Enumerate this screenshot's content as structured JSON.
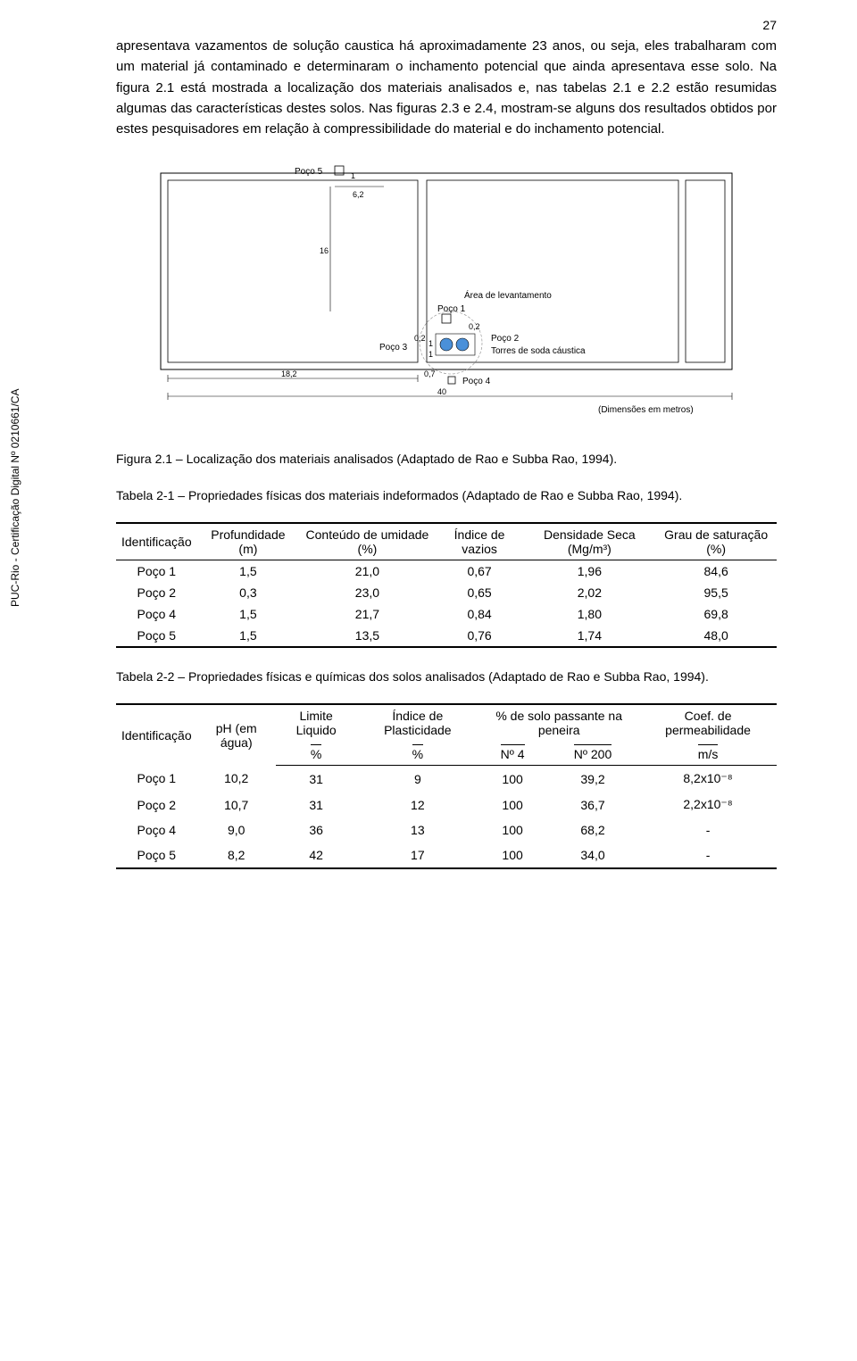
{
  "page_number": "27",
  "side_label": "PUC-Rio - Certificação Digital Nº 0210661/CA",
  "paragraph": "apresentava vazamentos de solução caustica há aproximadamente 23 anos, ou seja, eles trabalharam com um material já contaminado e determinaram o inchamento potencial que ainda apresentava esse solo. Na figura 2.1 está mostrada a localização dos materiais analisados e, nas tabelas 2.1 e 2.2 estão resumidas algumas das características destes solos. Nas figuras 2.3 e 2.4, mostram-se alguns dos resultados obtidos por estes pesquisadores em relação à compressibilidade do material e do inchamento potencial.",
  "diagram": {
    "labels": {
      "poco5": "Poço 5",
      "poco1": "Poço 1",
      "poco2": "Poço 2",
      "poco3": "Poço 3",
      "poco4": "Poço 4",
      "area": "Área de levantamento",
      "torres": "Torres de soda cáustica",
      "dims": "(Dimensões em metros)"
    },
    "measurements": {
      "d62": "6,2",
      "d16": "16",
      "d182": "18,2",
      "d02a": "0,2",
      "d02b": "0,2",
      "d07": "0,7",
      "d40": "40",
      "d1a": "1",
      "d1b": "1",
      "d1c": "1"
    },
    "colors": {
      "line": "#000000",
      "circle_fill": "#4a90d9",
      "background": "#ffffff"
    }
  },
  "fig_caption": "Figura 2.1 – Localização dos materiais analisados (Adaptado de Rao e Subba Rao, 1994).",
  "table1_caption": "Tabela 2-1 – Propriedades físicas dos materiais indeformados (Adaptado de Rao e Subba Rao, 1994).",
  "table1": {
    "headers": {
      "id": "Identificação",
      "prof": "Profundidade (m)",
      "umid": "Conteúdo de umidade (%)",
      "vazios": "Índice de vazios",
      "dens": "Densidade Seca (Mg/m³)",
      "sat": "Grau de saturação (%)"
    },
    "rows": [
      {
        "id": "Poço 1",
        "prof": "1,5",
        "umid": "21,0",
        "vazios": "0,67",
        "dens": "1,96",
        "sat": "84,6"
      },
      {
        "id": "Poço 2",
        "prof": "0,3",
        "umid": "23,0",
        "vazios": "0,65",
        "dens": "2,02",
        "sat": "95,5"
      },
      {
        "id": "Poço 4",
        "prof": "1,5",
        "umid": "21,7",
        "vazios": "0,84",
        "dens": "1,80",
        "sat": "69,8"
      },
      {
        "id": "Poço 5",
        "prof": "1,5",
        "umid": "13,5",
        "vazios": "0,76",
        "dens": "1,74",
        "sat": "48,0"
      }
    ]
  },
  "table2_caption": "Tabela 2-2 – Propriedades físicas e químicas dos solos analisados (Adaptado de Rao e Subba Rao, 1994).",
  "table2": {
    "headers": {
      "id": "Identificação",
      "ph": "pH (em água)",
      "liq": "Limite Liquido",
      "plast": "Índice de Plasticidade",
      "pass": "% de solo passante na peneira",
      "perm": "Coef. de permeabilidade",
      "pct": "%",
      "n4": "Nº 4",
      "n200": "Nº 200",
      "ms": "m/s"
    },
    "rows": [
      {
        "id": "Poço 1",
        "ph": "10,2",
        "liq": "31",
        "plast": "9",
        "n4": "100",
        "n200": "39,2",
        "perm": "8,2x10⁻⁸"
      },
      {
        "id": "Poço 2",
        "ph": "10,7",
        "liq": "31",
        "plast": "12",
        "n4": "100",
        "n200": "36,7",
        "perm": "2,2x10⁻⁸"
      },
      {
        "id": "Poço 4",
        "ph": "9,0",
        "liq": "36",
        "plast": "13",
        "n4": "100",
        "n200": "68,2",
        "perm": "-"
      },
      {
        "id": "Poço 5",
        "ph": "8,2",
        "liq": "42",
        "plast": "17",
        "n4": "100",
        "n200": "34,0",
        "perm": "-"
      }
    ]
  }
}
